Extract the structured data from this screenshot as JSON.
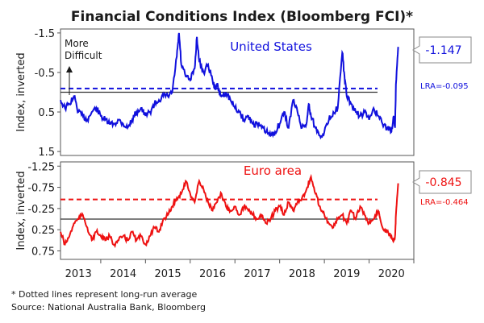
{
  "chart_data": [
    {
      "type": "line",
      "title": "Financial Conditions Index (Bloomberg FCI)*",
      "panel": "top",
      "ylabel": "Index, inverted",
      "ylim": [
        -1.6,
        1.6
      ],
      "y_inverted": true,
      "yticks": [
        "-1.5",
        "-0.5",
        "0.5",
        "1.5"
      ],
      "ytick_values": [
        -1.5,
        -0.5,
        0.5,
        1.5
      ],
      "xlim": [
        2012.6,
        2020.5
      ],
      "series": [
        {
          "name": "United States",
          "color": "#1010dd",
          "x": [
            2012.6,
            2012.7,
            2012.8,
            2012.9,
            2013.0,
            2013.1,
            2013.2,
            2013.3,
            2013.4,
            2013.5,
            2013.6,
            2013.7,
            2013.8,
            2013.9,
            2014.0,
            2014.1,
            2014.2,
            2014.3,
            2014.4,
            2014.5,
            2014.6,
            2014.7,
            2014.8,
            2014.9,
            2015.0,
            2015.1,
            2015.2,
            2015.25,
            2015.3,
            2015.4,
            2015.5,
            2015.6,
            2015.65,
            2015.7,
            2015.8,
            2015.9,
            2016.0,
            2016.05,
            2016.1,
            2016.15,
            2016.2,
            2016.3,
            2016.4,
            2016.5,
            2016.6,
            2016.7,
            2016.8,
            2016.9,
            2017.0,
            2017.1,
            2017.2,
            2017.3,
            2017.4,
            2017.5,
            2017.6,
            2017.7,
            2017.8,
            2017.9,
            2018.0,
            2018.1,
            2018.15,
            2018.2,
            2018.3,
            2018.4,
            2018.5,
            2018.6,
            2018.7,
            2018.8,
            2018.9,
            2018.95,
            2019.0,
            2019.1,
            2019.2,
            2019.3,
            2019.4,
            2019.5,
            2019.6,
            2019.7,
            2019.8,
            2019.9,
            2020.0,
            2020.05,
            2020.08,
            2020.1,
            2020.15
          ],
          "y": [
            0.2,
            0.4,
            0.3,
            0.1,
            0.5,
            0.6,
            0.7,
            0.5,
            0.4,
            0.6,
            0.7,
            0.8,
            0.8,
            0.7,
            0.8,
            0.9,
            0.7,
            0.5,
            0.4,
            0.6,
            0.5,
            0.3,
            0.2,
            0.1,
            0.1,
            0.0,
            -0.9,
            -1.5,
            -0.7,
            -0.4,
            -0.3,
            -0.6,
            -1.4,
            -0.8,
            -0.5,
            -0.7,
            -0.3,
            -0.1,
            -0.2,
            0.0,
            0.1,
            0.0,
            0.2,
            0.4,
            0.5,
            0.7,
            0.6,
            0.8,
            0.8,
            0.9,
            1.0,
            1.1,
            1.0,
            0.8,
            0.5,
            0.9,
            0.2,
            0.5,
            0.9,
            0.8,
            0.3,
            0.6,
            0.9,
            1.1,
            1.0,
            0.7,
            0.5,
            0.4,
            -1.0,
            -0.4,
            0.1,
            0.3,
            0.5,
            0.6,
            0.5,
            0.7,
            0.4,
            0.6,
            0.8,
            0.9,
            1.0,
            0.6,
            0.9,
            -0.2,
            -1.147
          ]
        }
      ],
      "reference_lines": [
        {
          "type": "zero",
          "value": 0,
          "color": "#333333"
        },
        {
          "type": "long-run average",
          "value": -0.095,
          "style": "dashed",
          "color": "#1010dd"
        }
      ],
      "annotations": {
        "more_difficult": "More\nDifficult",
        "latest_value": "-1.147",
        "lra_label": "LRA=-0.095"
      }
    },
    {
      "type": "line",
      "panel": "bottom",
      "ylabel": "Index, inverted",
      "ylim": [
        -1.35,
        0.95
      ],
      "y_inverted": true,
      "yticks": [
        "-1.25",
        "-0.75",
        "-0.25",
        "0.25",
        "0.75"
      ],
      "ytick_values": [
        -1.25,
        -0.75,
        -0.25,
        0.25,
        0.75
      ],
      "xlim": [
        2012.6,
        2020.5
      ],
      "xticks": [
        "2013",
        "2014",
        "2015",
        "2016",
        "2017",
        "2018",
        "2019",
        "2020"
      ],
      "series": [
        {
          "name": "Euro area",
          "color": "#ee1111",
          "x": [
            2012.6,
            2012.7,
            2012.8,
            2012.9,
            2013.0,
            2013.1,
            2013.2,
            2013.3,
            2013.4,
            2013.5,
            2013.6,
            2013.7,
            2013.8,
            2013.9,
            2014.0,
            2014.1,
            2014.2,
            2014.3,
            2014.4,
            2014.5,
            2014.6,
            2014.7,
            2014.8,
            2014.9,
            2015.0,
            2015.1,
            2015.2,
            2015.3,
            2015.4,
            2015.5,
            2015.6,
            2015.7,
            2015.8,
            2015.9,
            2016.0,
            2016.1,
            2016.2,
            2016.3,
            2016.4,
            2016.5,
            2016.6,
            2016.7,
            2016.8,
            2016.9,
            2017.0,
            2017.1,
            2017.2,
            2017.3,
            2017.4,
            2017.5,
            2017.6,
            2017.7,
            2017.8,
            2017.9,
            2018.0,
            2018.1,
            2018.2,
            2018.3,
            2018.4,
            2018.5,
            2018.6,
            2018.7,
            2018.8,
            2018.9,
            2019.0,
            2019.1,
            2019.2,
            2019.3,
            2019.4,
            2019.5,
            2019.6,
            2019.7,
            2019.8,
            2019.9,
            2020.0,
            2020.05,
            2020.08,
            2020.1,
            2020.15
          ],
          "y": [
            0.3,
            0.6,
            0.4,
            0.1,
            0.0,
            -0.1,
            0.2,
            0.5,
            0.3,
            0.4,
            0.5,
            0.4,
            0.6,
            0.5,
            0.4,
            0.5,
            0.3,
            0.5,
            0.4,
            0.6,
            0.4,
            0.2,
            0.3,
            0.0,
            -0.1,
            -0.3,
            -0.5,
            -0.6,
            -0.9,
            -0.6,
            -0.4,
            -0.9,
            -0.7,
            -0.4,
            -0.2,
            -0.4,
            -0.6,
            -0.3,
            -0.2,
            -0.3,
            -0.1,
            -0.3,
            -0.2,
            -0.1,
            0.0,
            -0.1,
            0.1,
            0.0,
            -0.2,
            -0.3,
            -0.1,
            -0.4,
            -0.2,
            -0.4,
            -0.5,
            -0.7,
            -1.0,
            -0.6,
            -0.3,
            -0.1,
            0.1,
            0.2,
            0.0,
            -0.1,
            0.1,
            -0.2,
            0.0,
            -0.3,
            -0.1,
            0.1,
            0.0,
            -0.2,
            0.2,
            0.3,
            0.4,
            0.5,
            0.4,
            -0.1,
            -0.845
          ]
        }
      ],
      "reference_lines": [
        {
          "type": "zero",
          "value": 0,
          "color": "#333333"
        },
        {
          "type": "long-run average",
          "value": -0.464,
          "style": "dashed",
          "color": "#ee1111"
        }
      ],
      "annotations": {
        "latest_value": "-0.845",
        "lra_label": "LRA=-0.464"
      }
    }
  ],
  "footnotes": {
    "note": "* Dotted lines represent long-run average",
    "source": "Source: National Australia Bank, Bloomberg"
  }
}
